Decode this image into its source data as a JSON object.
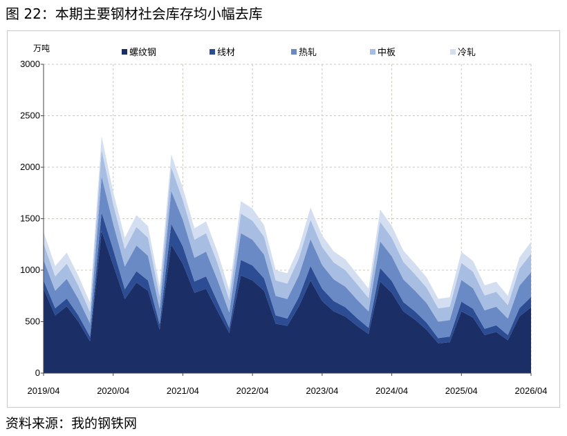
{
  "header": {
    "title": "图 22：本期主要钢材社会库存均小幅去库"
  },
  "footer": {
    "source": "资料来源：我的钢铁网"
  },
  "chart_data": {
    "type": "area",
    "stacked": true,
    "ylabel": "万吨",
    "ylim": [
      0,
      3000
    ],
    "yticks": [
      0,
      500,
      1000,
      1500,
      2000,
      2500,
      3000
    ],
    "xticks": [
      "2019/04",
      "2020/04",
      "2021/04",
      "2022/04",
      "2023/04",
      "2024/04",
      "2025/04",
      "2026/04"
    ],
    "grid": true,
    "legend_position": "top",
    "x_dates": [
      "2019/04",
      "2019/06",
      "2019/08",
      "2019/10",
      "2019/12",
      "2020/02",
      "2020/04",
      "2020/06",
      "2020/08",
      "2020/10",
      "2020/12",
      "2021/02",
      "2021/04",
      "2021/06",
      "2021/08",
      "2021/10",
      "2021/12",
      "2022/02",
      "2022/04",
      "2022/06",
      "2022/08",
      "2022/10",
      "2022/12",
      "2023/02",
      "2023/04",
      "2023/06",
      "2023/08",
      "2023/10",
      "2023/12",
      "2024/02",
      "2024/04",
      "2024/06",
      "2024/08",
      "2024/10",
      "2024/12",
      "2025/02",
      "2025/04",
      "2025/06",
      "2025/08",
      "2025/10",
      "2025/12",
      "2026/02",
      "2026/04"
    ],
    "series": [
      {
        "name": "螺纹钢",
        "color": "#1b2f66",
        "values": [
          820,
          560,
          650,
          500,
          310,
          1380,
          1050,
          720,
          880,
          800,
          420,
          1250,
          1060,
          780,
          820,
          600,
          390,
          950,
          900,
          800,
          480,
          460,
          650,
          900,
          700,
          600,
          550,
          460,
          380,
          890,
          780,
          600,
          520,
          420,
          290,
          300,
          600,
          540,
          370,
          400,
          320,
          550,
          640
        ]
      },
      {
        "name": "线材",
        "color": "#2c4d93",
        "values": [
          80,
          70,
          75,
          60,
          45,
          180,
          150,
          95,
          110,
          100,
          55,
          200,
          170,
          110,
          120,
          90,
          50,
          150,
          145,
          120,
          80,
          70,
          90,
          140,
          120,
          100,
          90,
          75,
          60,
          130,
          115,
          90,
          80,
          70,
          50,
          55,
          95,
          85,
          60,
          65,
          50,
          80,
          100
        ]
      },
      {
        "name": "热轧",
        "color": "#6a8ac6",
        "values": [
          200,
          170,
          190,
          160,
          130,
          350,
          250,
          220,
          250,
          240,
          150,
          320,
          260,
          230,
          240,
          210,
          150,
          260,
          250,
          230,
          190,
          190,
          210,
          260,
          230,
          210,
          200,
          180,
          160,
          260,
          240,
          220,
          200,
          190,
          160,
          160,
          210,
          200,
          180,
          180,
          160,
          220,
          240
        ]
      },
      {
        "name": "中板",
        "color": "#a8bde2",
        "values": [
          160,
          140,
          150,
          130,
          110,
          260,
          190,
          170,
          180,
          175,
          120,
          230,
          190,
          175,
          180,
          165,
          120,
          190,
          185,
          175,
          150,
          150,
          165,
          190,
          175,
          165,
          160,
          150,
          130,
          190,
          180,
          170,
          160,
          150,
          130,
          130,
          165,
          160,
          145,
          145,
          130,
          165,
          180
        ]
      },
      {
        "name": "冷轧",
        "color": "#d4def1",
        "values": [
          110,
          100,
          105,
          95,
          90,
          130,
          120,
          110,
          115,
          112,
          95,
          125,
          118,
          112,
          114,
          108,
          95,
          120,
          118,
          112,
          100,
          100,
          105,
          118,
          112,
          108,
          105,
          98,
          92,
          118,
          115,
          110,
          105,
          100,
          92,
          92,
          108,
          105,
          98,
          98,
          92,
          108,
          115
        ]
      }
    ]
  }
}
